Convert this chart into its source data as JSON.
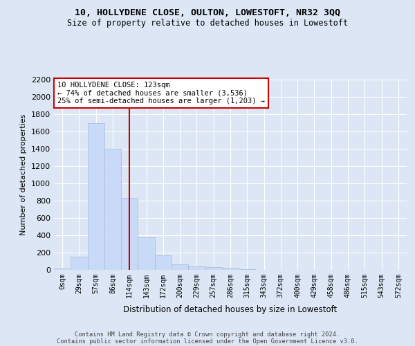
{
  "title": "10, HOLLYDENE CLOSE, OULTON, LOWESTOFT, NR32 3QQ",
  "subtitle": "Size of property relative to detached houses in Lowestoft",
  "xlabel": "Distribution of detached houses by size in Lowestoft",
  "ylabel": "Number of detached properties",
  "bin_labels": [
    "0sqm",
    "29sqm",
    "57sqm",
    "86sqm",
    "114sqm",
    "143sqm",
    "172sqm",
    "200sqm",
    "229sqm",
    "257sqm",
    "286sqm",
    "315sqm",
    "343sqm",
    "372sqm",
    "400sqm",
    "429sqm",
    "458sqm",
    "486sqm",
    "515sqm",
    "543sqm",
    "572sqm"
  ],
  "bar_values": [
    20,
    155,
    1700,
    1400,
    830,
    380,
    165,
    65,
    38,
    30,
    28,
    5,
    0,
    0,
    0,
    0,
    0,
    0,
    0,
    0,
    0
  ],
  "bar_color": "#c9daf8",
  "bar_edge_color": "#a4bad6",
  "vline_color": "#cc0000",
  "vline_x": 4,
  "annotation_text": "10 HOLLYDENE CLOSE: 123sqm\n← 74% of detached houses are smaller (3,536)\n25% of semi-detached houses are larger (1,203) →",
  "annotation_box_color": "#ffffff",
  "annotation_box_edge_color": "#cc0000",
  "ylim": [
    0,
    2200
  ],
  "yticks": [
    0,
    200,
    400,
    600,
    800,
    1000,
    1200,
    1400,
    1600,
    1800,
    2000,
    2200
  ],
  "background_color": "#dce6f5",
  "grid_color": "#ffffff",
  "footer_line1": "Contains HM Land Registry data © Crown copyright and database right 2024.",
  "footer_line2": "Contains public sector information licensed under the Open Government Licence v3.0."
}
